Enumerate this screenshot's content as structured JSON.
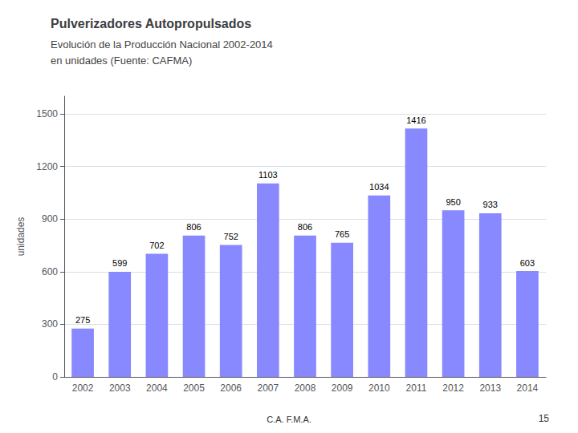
{
  "chart_data": {
    "type": "bar",
    "title": "Pulverizadores Autopropulsados",
    "subtitle": [
      "Evolución de la Producción Nacional 2002-2014",
      "en unidades (Fuente: CAFMA)"
    ],
    "categories": [
      "2002",
      "2003",
      "2004",
      "2005",
      "2006",
      "2007",
      "2008",
      "2009",
      "2010",
      "2011",
      "2012",
      "2013",
      "2014"
    ],
    "values": [
      275,
      599,
      702,
      806,
      752,
      1103,
      806,
      765,
      1034,
      1416,
      950,
      933,
      603
    ],
    "color": "#8888FF",
    "ylabel": "unidades",
    "ylim": [
      0,
      1600
    ],
    "yticks": [
      0,
      300,
      600,
      900,
      1200,
      1500
    ],
    "grid": true,
    "data_labels": true,
    "annotations": [
      "C.A. F.M.A.",
      "15"
    ]
  }
}
